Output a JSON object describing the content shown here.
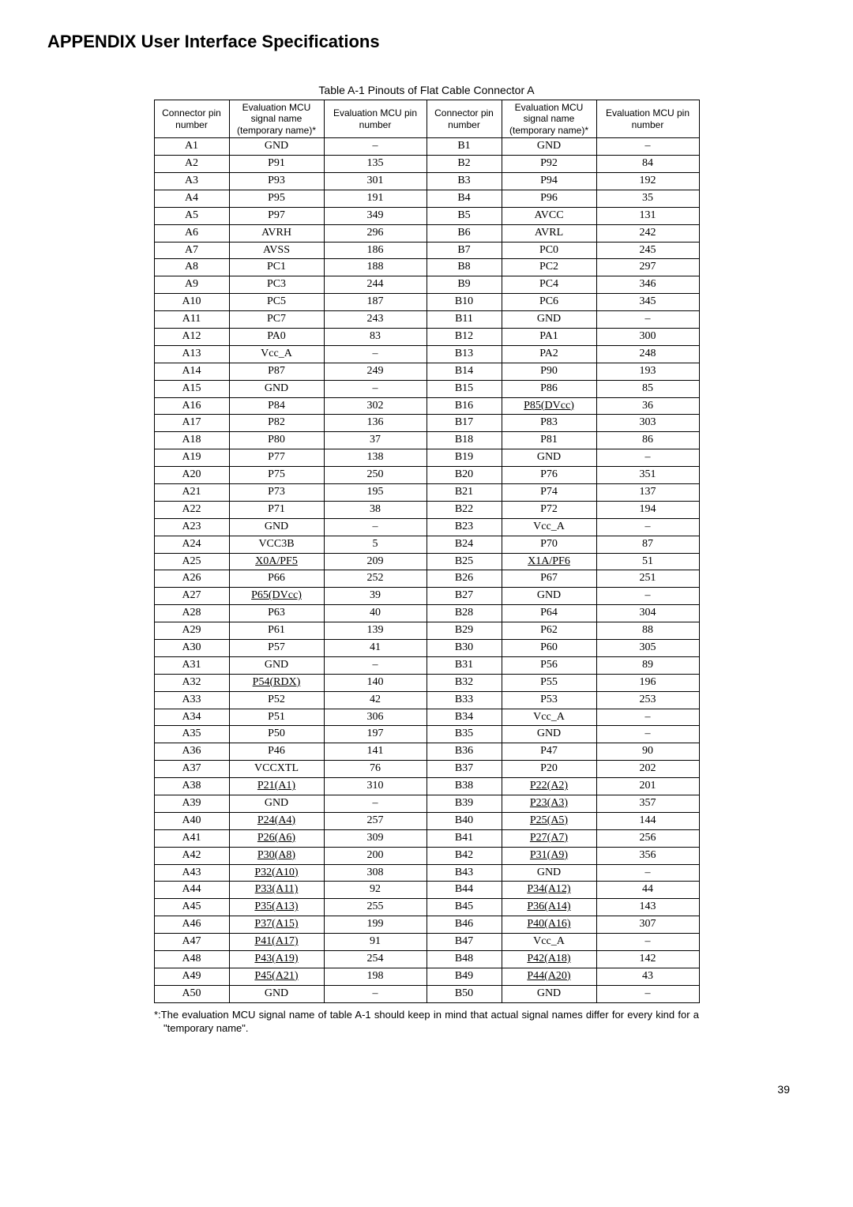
{
  "title": "APPENDIX User Interface Specifications",
  "table_caption": "Table A-1 Pinouts of Flat Cable Connector A",
  "headers": [
    "Connector pin number",
    "Evaluation MCU signal name (temporary name)*",
    "Evaluation MCU pin number",
    "Connector pin number",
    "Evaluation MCU signal name (temporary name)*",
    "Evaluation MCU pin number"
  ],
  "rows": [
    {
      "a_pin": "A1",
      "a_sig": "GND",
      "a_sigU": false,
      "a_mcu": "–",
      "b_pin": "B1",
      "b_sig": "GND",
      "b_sigU": false,
      "b_mcu": "–"
    },
    {
      "a_pin": "A2",
      "a_sig": "P91",
      "a_sigU": false,
      "a_mcu": "135",
      "b_pin": "B2",
      "b_sig": "P92",
      "b_sigU": false,
      "b_mcu": "84"
    },
    {
      "a_pin": "A3",
      "a_sig": "P93",
      "a_sigU": false,
      "a_mcu": "301",
      "b_pin": "B3",
      "b_sig": "P94",
      "b_sigU": false,
      "b_mcu": "192"
    },
    {
      "a_pin": "A4",
      "a_sig": "P95",
      "a_sigU": false,
      "a_mcu": "191",
      "b_pin": "B4",
      "b_sig": "P96",
      "b_sigU": false,
      "b_mcu": "35"
    },
    {
      "a_pin": "A5",
      "a_sig": "P97",
      "a_sigU": false,
      "a_mcu": "349",
      "b_pin": "B5",
      "b_sig": "AVCC",
      "b_sigU": false,
      "b_mcu": "131"
    },
    {
      "a_pin": "A6",
      "a_sig": "AVRH",
      "a_sigU": false,
      "a_mcu": "296",
      "b_pin": "B6",
      "b_sig": "AVRL",
      "b_sigU": false,
      "b_mcu": "242"
    },
    {
      "a_pin": "A7",
      "a_sig": "AVSS",
      "a_sigU": false,
      "a_mcu": "186",
      "b_pin": "B7",
      "b_sig": "PC0",
      "b_sigU": false,
      "b_mcu": "245"
    },
    {
      "a_pin": "A8",
      "a_sig": "PC1",
      "a_sigU": false,
      "a_mcu": "188",
      "b_pin": "B8",
      "b_sig": "PC2",
      "b_sigU": false,
      "b_mcu": "297"
    },
    {
      "a_pin": "A9",
      "a_sig": "PC3",
      "a_sigU": false,
      "a_mcu": "244",
      "b_pin": "B9",
      "b_sig": "PC4",
      "b_sigU": false,
      "b_mcu": "346"
    },
    {
      "a_pin": "A10",
      "a_sig": "PC5",
      "a_sigU": false,
      "a_mcu": "187",
      "b_pin": "B10",
      "b_sig": "PC6",
      "b_sigU": false,
      "b_mcu": "345"
    },
    {
      "a_pin": "A11",
      "a_sig": "PC7",
      "a_sigU": false,
      "a_mcu": "243",
      "b_pin": "B11",
      "b_sig": "GND",
      "b_sigU": false,
      "b_mcu": "–"
    },
    {
      "a_pin": "A12",
      "a_sig": "PA0",
      "a_sigU": false,
      "a_mcu": "83",
      "b_pin": "B12",
      "b_sig": "PA1",
      "b_sigU": false,
      "b_mcu": "300"
    },
    {
      "a_pin": "A13",
      "a_sig": "Vcc_A",
      "a_sigU": false,
      "a_mcu": "–",
      "b_pin": "B13",
      "b_sig": "PA2",
      "b_sigU": false,
      "b_mcu": "248"
    },
    {
      "a_pin": "A14",
      "a_sig": "P87",
      "a_sigU": false,
      "a_mcu": "249",
      "b_pin": "B14",
      "b_sig": "P90",
      "b_sigU": false,
      "b_mcu": "193"
    },
    {
      "a_pin": "A15",
      "a_sig": "GND",
      "a_sigU": false,
      "a_mcu": "–",
      "b_pin": "B15",
      "b_sig": "P86",
      "b_sigU": false,
      "b_mcu": "85"
    },
    {
      "a_pin": "A16",
      "a_sig": "P84",
      "a_sigU": false,
      "a_mcu": "302",
      "b_pin": "B16",
      "b_sig": "P85(DVcc)",
      "b_sigU": true,
      "b_mcu": "36"
    },
    {
      "a_pin": "A17",
      "a_sig": "P82",
      "a_sigU": false,
      "a_mcu": "136",
      "b_pin": "B17",
      "b_sig": "P83",
      "b_sigU": false,
      "b_mcu": "303"
    },
    {
      "a_pin": "A18",
      "a_sig": "P80",
      "a_sigU": false,
      "a_mcu": "37",
      "b_pin": "B18",
      "b_sig": "P81",
      "b_sigU": false,
      "b_mcu": "86"
    },
    {
      "a_pin": "A19",
      "a_sig": "P77",
      "a_sigU": false,
      "a_mcu": "138",
      "b_pin": "B19",
      "b_sig": "GND",
      "b_sigU": false,
      "b_mcu": "–"
    },
    {
      "a_pin": "A20",
      "a_sig": "P75",
      "a_sigU": false,
      "a_mcu": "250",
      "b_pin": "B20",
      "b_sig": "P76",
      "b_sigU": false,
      "b_mcu": "351"
    },
    {
      "a_pin": "A21",
      "a_sig": "P73",
      "a_sigU": false,
      "a_mcu": "195",
      "b_pin": "B21",
      "b_sig": "P74",
      "b_sigU": false,
      "b_mcu": "137"
    },
    {
      "a_pin": "A22",
      "a_sig": "P71",
      "a_sigU": false,
      "a_mcu": "38",
      "b_pin": "B22",
      "b_sig": "P72",
      "b_sigU": false,
      "b_mcu": "194"
    },
    {
      "a_pin": "A23",
      "a_sig": "GND",
      "a_sigU": false,
      "a_mcu": "–",
      "b_pin": "B23",
      "b_sig": "Vcc_A",
      "b_sigU": false,
      "b_mcu": "–"
    },
    {
      "a_pin": "A24",
      "a_sig": "VCC3B",
      "a_sigU": false,
      "a_mcu": "5",
      "b_pin": "B24",
      "b_sig": "P70",
      "b_sigU": false,
      "b_mcu": "87"
    },
    {
      "a_pin": "A25",
      "a_sig": "X0A/PF5",
      "a_sigU": true,
      "a_mcu": "209",
      "b_pin": "B25",
      "b_sig": "X1A/PF6",
      "b_sigU": true,
      "b_mcu": "51"
    },
    {
      "a_pin": "A26",
      "a_sig": "P66",
      "a_sigU": false,
      "a_mcu": "252",
      "b_pin": "B26",
      "b_sig": "P67",
      "b_sigU": false,
      "b_mcu": "251"
    },
    {
      "a_pin": "A27",
      "a_sig": "P65(DVcc)",
      "a_sigU": true,
      "a_mcu": "39",
      "b_pin": "B27",
      "b_sig": "GND",
      "b_sigU": false,
      "b_mcu": "–"
    },
    {
      "a_pin": "A28",
      "a_sig": "P63",
      "a_sigU": false,
      "a_mcu": "40",
      "b_pin": "B28",
      "b_sig": "P64",
      "b_sigU": false,
      "b_mcu": "304"
    },
    {
      "a_pin": "A29",
      "a_sig": "P61",
      "a_sigU": false,
      "a_mcu": "139",
      "b_pin": "B29",
      "b_sig": "P62",
      "b_sigU": false,
      "b_mcu": "88"
    },
    {
      "a_pin": "A30",
      "a_sig": "P57",
      "a_sigU": false,
      "a_mcu": "41",
      "b_pin": "B30",
      "b_sig": "P60",
      "b_sigU": false,
      "b_mcu": "305"
    },
    {
      "a_pin": "A31",
      "a_sig": "GND",
      "a_sigU": false,
      "a_mcu": "–",
      "b_pin": "B31",
      "b_sig": "P56",
      "b_sigU": false,
      "b_mcu": "89"
    },
    {
      "a_pin": "A32",
      "a_sig": "P54(RDX)",
      "a_sigU": true,
      "a_mcu": "140",
      "b_pin": "B32",
      "b_sig": "P55",
      "b_sigU": false,
      "b_mcu": "196"
    },
    {
      "a_pin": "A33",
      "a_sig": "P52",
      "a_sigU": false,
      "a_mcu": "42",
      "b_pin": "B33",
      "b_sig": "P53",
      "b_sigU": false,
      "b_mcu": "253"
    },
    {
      "a_pin": "A34",
      "a_sig": "P51",
      "a_sigU": false,
      "a_mcu": "306",
      "b_pin": "B34",
      "b_sig": "Vcc_A",
      "b_sigU": false,
      "b_mcu": "–"
    },
    {
      "a_pin": "A35",
      "a_sig": "P50",
      "a_sigU": false,
      "a_mcu": "197",
      "b_pin": "B35",
      "b_sig": "GND",
      "b_sigU": false,
      "b_mcu": "–"
    },
    {
      "a_pin": "A36",
      "a_sig": "P46",
      "a_sigU": false,
      "a_mcu": "141",
      "b_pin": "B36",
      "b_sig": "P47",
      "b_sigU": false,
      "b_mcu": "90"
    },
    {
      "a_pin": "A37",
      "a_sig": "VCCXTL",
      "a_sigU": false,
      "a_mcu": "76",
      "b_pin": "B37",
      "b_sig": "P20",
      "b_sigU": false,
      "b_mcu": "202"
    },
    {
      "a_pin": "A38",
      "a_sig": "P21(A1)",
      "a_sigU": true,
      "a_mcu": "310",
      "b_pin": "B38",
      "b_sig": "P22(A2)",
      "b_sigU": true,
      "b_mcu": "201"
    },
    {
      "a_pin": "A39",
      "a_sig": "GND",
      "a_sigU": false,
      "a_mcu": "–",
      "b_pin": "B39",
      "b_sig": "P23(A3)",
      "b_sigU": true,
      "b_mcu": "357"
    },
    {
      "a_pin": "A40",
      "a_sig": "P24(A4)",
      "a_sigU": true,
      "a_mcu": "257",
      "b_pin": "B40",
      "b_sig": "P25(A5)",
      "b_sigU": true,
      "b_mcu": "144"
    },
    {
      "a_pin": "A41",
      "a_sig": "P26(A6)",
      "a_sigU": true,
      "a_mcu": "309",
      "b_pin": "B41",
      "b_sig": "P27(A7)",
      "b_sigU": true,
      "b_mcu": "256"
    },
    {
      "a_pin": "A42",
      "a_sig": "P30(A8)",
      "a_sigU": true,
      "a_mcu": "200",
      "b_pin": "B42",
      "b_sig": "P31(A9)",
      "b_sigU": true,
      "b_mcu": "356"
    },
    {
      "a_pin": "A43",
      "a_sig": "P32(A10)",
      "a_sigU": true,
      "a_mcu": "308",
      "b_pin": "B43",
      "b_sig": "GND",
      "b_sigU": false,
      "b_mcu": "–"
    },
    {
      "a_pin": "A44",
      "a_sig": "P33(A11)",
      "a_sigU": true,
      "a_mcu": "92",
      "b_pin": "B44",
      "b_sig": "P34(A12)",
      "b_sigU": true,
      "b_mcu": "44"
    },
    {
      "a_pin": "A45",
      "a_sig": "P35(A13)",
      "a_sigU": true,
      "a_mcu": "255",
      "b_pin": "B45",
      "b_sig": "P36(A14)",
      "b_sigU": true,
      "b_mcu": "143"
    },
    {
      "a_pin": "A46",
      "a_sig": "P37(A15)",
      "a_sigU": true,
      "a_mcu": "199",
      "b_pin": "B46",
      "b_sig": "P40(A16)",
      "b_sigU": true,
      "b_mcu": "307"
    },
    {
      "a_pin": "A47",
      "a_sig": "P41(A17)",
      "a_sigU": true,
      "a_mcu": "91",
      "b_pin": "B47",
      "b_sig": "Vcc_A",
      "b_sigU": false,
      "b_mcu": "–"
    },
    {
      "a_pin": "A48",
      "a_sig": "P43(A19)",
      "a_sigU": true,
      "a_mcu": "254",
      "b_pin": "B48",
      "b_sig": "P42(A18)",
      "b_sigU": true,
      "b_mcu": "142"
    },
    {
      "a_pin": "A49",
      "a_sig": "P45(A21)",
      "a_sigU": true,
      "a_mcu": "198",
      "b_pin": "B49",
      "b_sig": "P44(A20)",
      "b_sigU": true,
      "b_mcu": "43"
    },
    {
      "a_pin": "A50",
      "a_sig": "GND",
      "a_sigU": false,
      "a_mcu": "–",
      "b_pin": "B50",
      "b_sig": "GND",
      "b_sigU": false,
      "b_mcu": "–"
    }
  ],
  "footnote": "*:The evaluation MCU signal name of table A-1 should keep in mind that actual signal names differ for every kind for a \"temporary name\".",
  "page_number": "39",
  "column_widths": [
    "95px",
    "120px",
    "130px",
    "95px",
    "120px",
    "130px"
  ],
  "colors": {
    "background": "#ffffff",
    "text": "#000000",
    "border": "#000000"
  }
}
